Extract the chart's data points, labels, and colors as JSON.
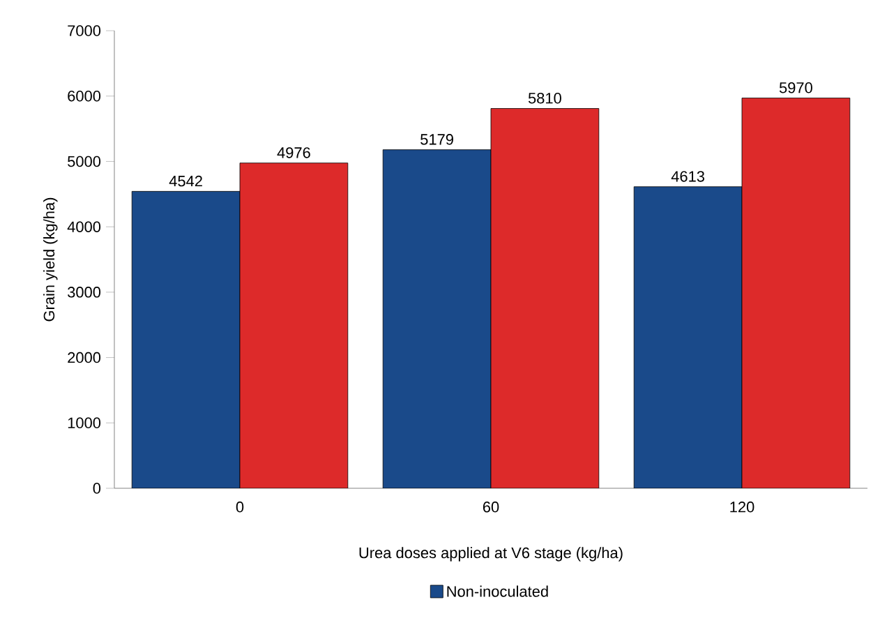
{
  "chart_data": {
    "type": "bar",
    "xlabel": "Urea doses applied at V6 stage (kg/ha)",
    "ylabel": "Grain yield (kg/ha)",
    "categories": [
      "0",
      "60",
      "120"
    ],
    "series": [
      {
        "name": "Non-inoculated",
        "color": "#1a4a8a",
        "values": [
          4542,
          5179,
          4613
        ]
      },
      {
        "color": "#dd2a2a",
        "values": [
          4976,
          5810,
          5970
        ]
      }
    ],
    "ylim": [
      0,
      7000
    ],
    "yticks": [
      0,
      1000,
      2000,
      3000,
      4000,
      5000,
      6000,
      7000
    ],
    "data_labels": true,
    "legend": "bottom",
    "grid": false
  }
}
